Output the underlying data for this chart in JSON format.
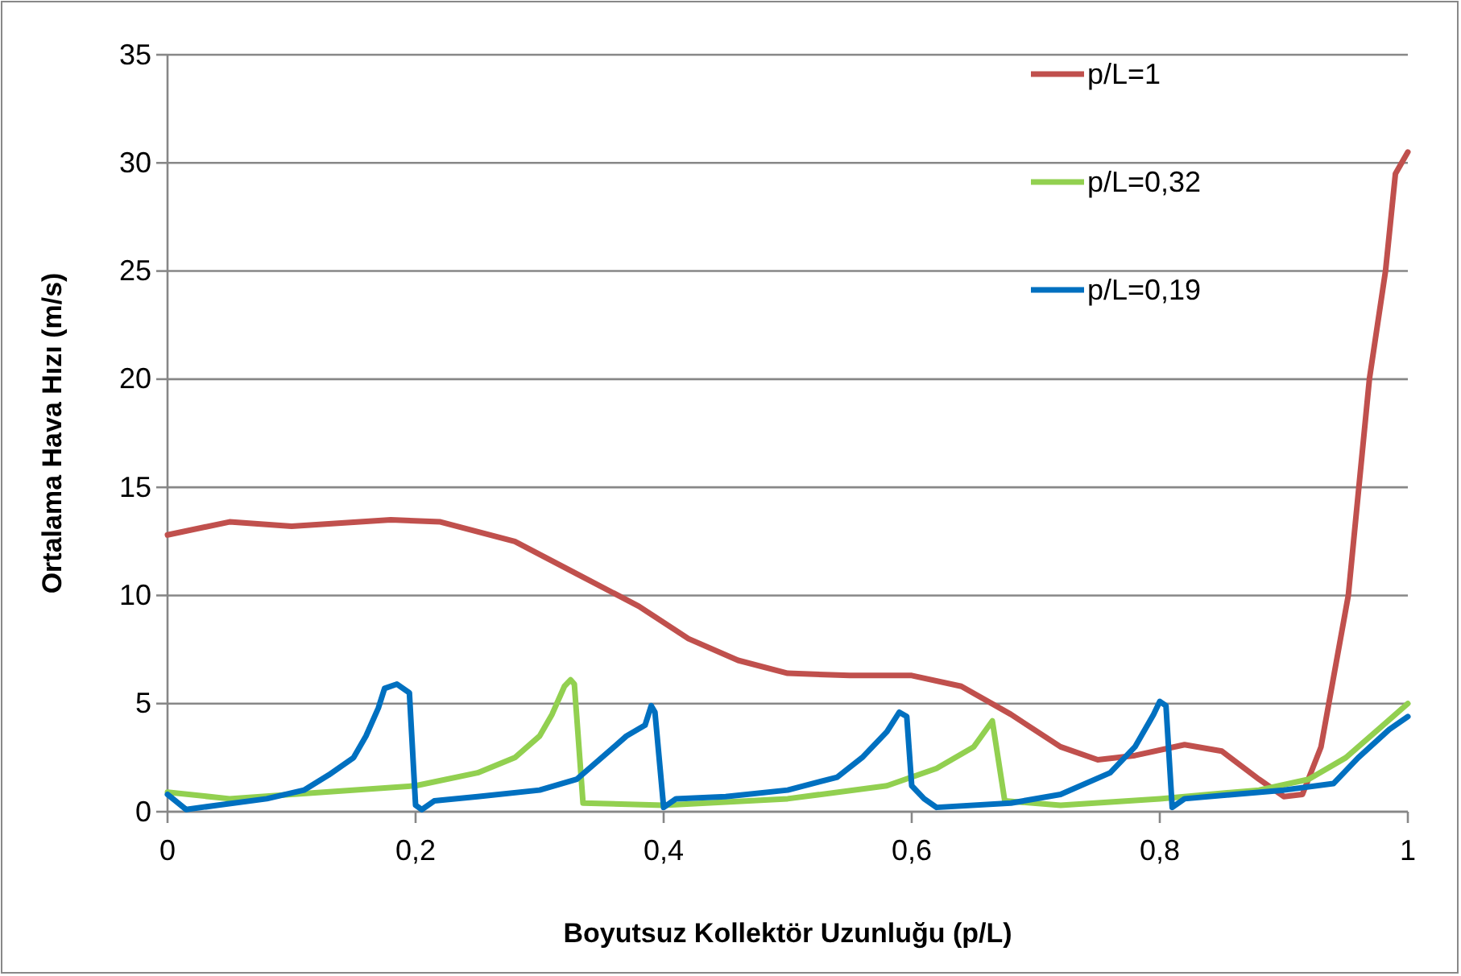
{
  "chart_data": {
    "type": "line",
    "xlabel": "Boyutsuz Kollektör Uzunluğu (p/L)",
    "ylabel": "Ortalama Hava Hızı (m/s)",
    "xlim": [
      0,
      1
    ],
    "xticks": [
      0,
      {
        "value": 0.2,
        "label": "0,2"
      },
      {
        "value": 0.4,
        "label": "0,4"
      },
      {
        "value": 0.6,
        "label": "0,6"
      },
      {
        "value": 0.8,
        "label": "0,8"
      },
      1
    ],
    "ylim": [
      0,
      35
    ],
    "yticks": [
      0,
      5,
      10,
      15,
      20,
      25,
      30,
      35
    ],
    "grid": "y",
    "legend": "top right",
    "marker": "none",
    "line_style": "solid",
    "series": [
      {
        "name": "p/L=1",
        "color": "#c0504d",
        "x": [
          0,
          0.05,
          0.1,
          0.18,
          0.22,
          0.28,
          0.33,
          0.38,
          0.42,
          0.46,
          0.5,
          0.55,
          0.6,
          0.64,
          0.68,
          0.72,
          0.75,
          0.78,
          0.82,
          0.85,
          0.88,
          0.9,
          0.915,
          0.93,
          0.952,
          0.969,
          0.982,
          0.99,
          1
        ],
        "values": [
          12.8,
          13.4,
          13.2,
          13.5,
          13.4,
          12.5,
          11,
          9.5,
          8,
          7,
          6.4,
          6.3,
          6.3,
          5.8,
          4.5,
          3,
          2.4,
          2.6,
          3.1,
          2.8,
          1.5,
          0.7,
          0.8,
          3,
          10,
          20,
          25,
          29.5,
          30.5
        ]
      },
      {
        "name": "p/L=0,32",
        "color": "#92d050",
        "x": [
          0,
          0.05,
          0.1,
          0.2,
          0.25,
          0.28,
          0.3,
          0.31,
          0.32,
          0.325,
          0.328,
          0.335,
          0.4,
          0.5,
          0.58,
          0.62,
          0.65,
          0.665,
          0.675,
          0.72,
          0.8,
          0.88,
          0.92,
          0.95,
          0.98,
          1
        ],
        "values": [
          0.9,
          0.6,
          0.8,
          1.2,
          1.8,
          2.5,
          3.5,
          4.5,
          5.8,
          6.1,
          5.9,
          0.4,
          0.3,
          0.6,
          1.2,
          2,
          3,
          4.2,
          0.5,
          0.3,
          0.6,
          1,
          1.5,
          2.5,
          4,
          5
        ]
      },
      {
        "name": "p/L=0,19",
        "color": "#0070c0",
        "x": [
          0,
          0.015,
          0.04,
          0.08,
          0.11,
          0.13,
          0.15,
          0.16,
          0.17,
          0.175,
          0.185,
          0.195,
          0.2,
          0.205,
          0.215,
          0.25,
          0.3,
          0.33,
          0.35,
          0.37,
          0.385,
          0.39,
          0.393,
          0.4,
          0.41,
          0.45,
          0.5,
          0.54,
          0.56,
          0.58,
          0.59,
          0.596,
          0.6,
          0.61,
          0.62,
          0.68,
          0.72,
          0.76,
          0.78,
          0.795,
          0.8,
          0.805,
          0.81,
          0.82,
          0.86,
          0.9,
          0.94,
          0.96,
          0.985,
          1
        ],
        "values": [
          0.8,
          0.1,
          0.3,
          0.6,
          1,
          1.7,
          2.5,
          3.5,
          4.8,
          5.7,
          5.9,
          5.5,
          0.3,
          0.1,
          0.5,
          0.7,
          1,
          1.5,
          2.5,
          3.5,
          4,
          4.9,
          4.6,
          0.2,
          0.6,
          0.7,
          1,
          1.6,
          2.5,
          3.7,
          4.6,
          4.4,
          1.2,
          0.6,
          0.2,
          0.4,
          0.8,
          1.8,
          3,
          4.5,
          5.1,
          4.9,
          0.2,
          0.6,
          0.8,
          1,
          1.3,
          2.5,
          3.8,
          4.4
        ]
      }
    ]
  }
}
